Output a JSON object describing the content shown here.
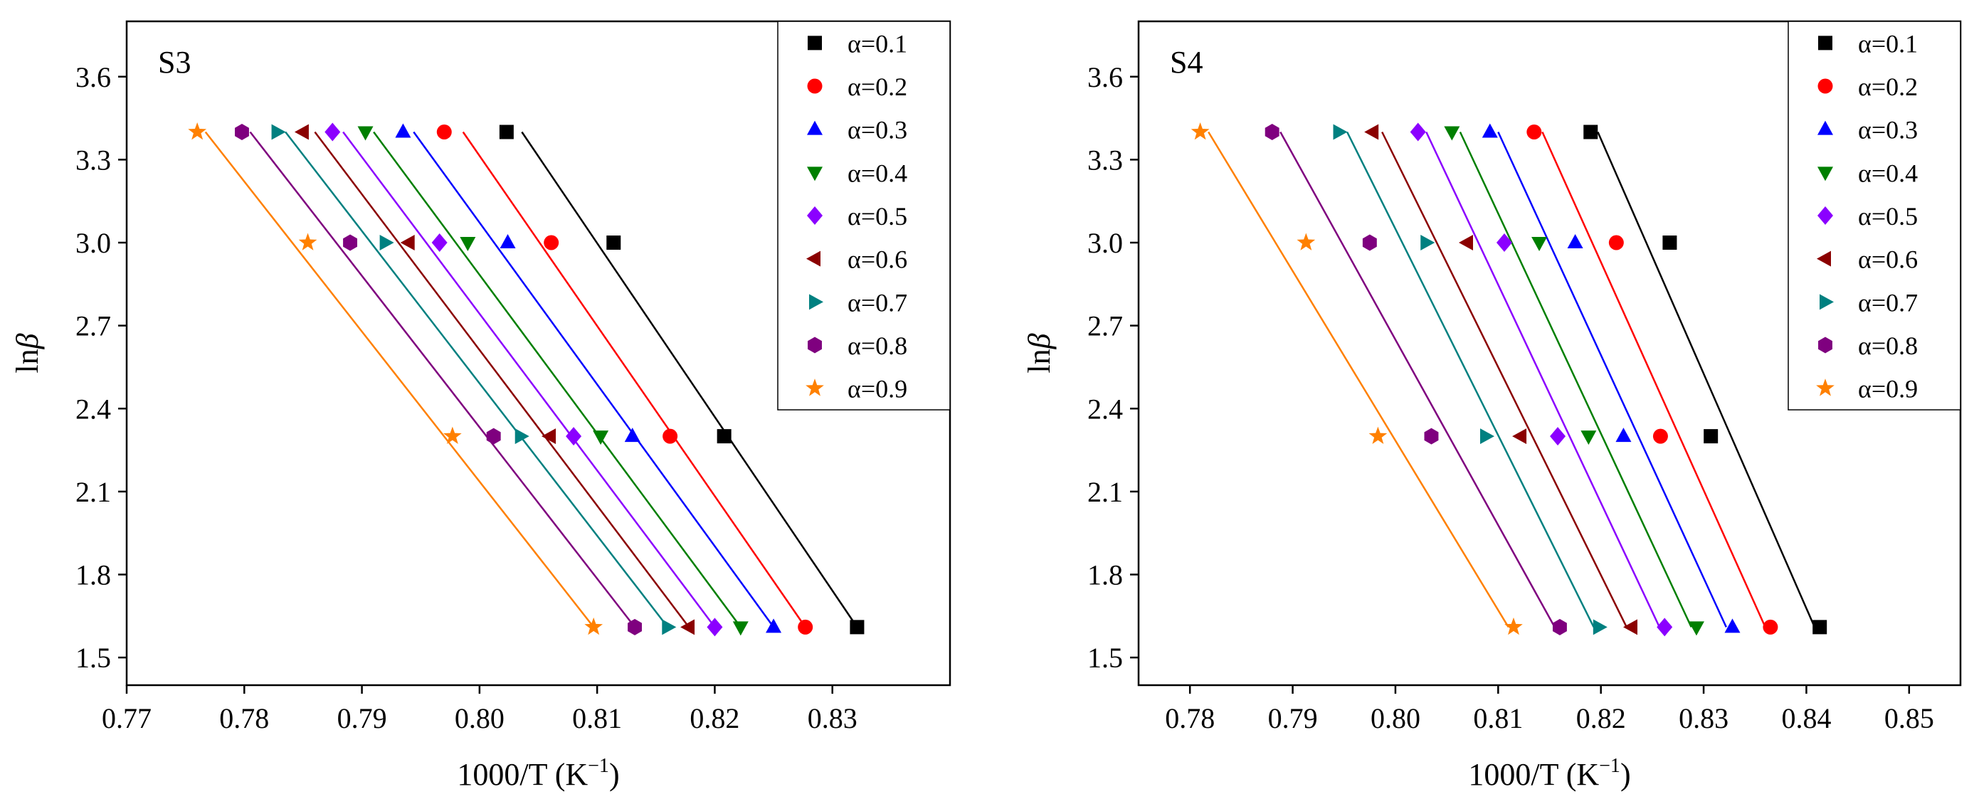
{
  "chart_data": [
    {
      "type": "scatter",
      "panel_label": "S3",
      "title": "",
      "xlabel": "1000/T (K⁻¹)",
      "xlabel_main": "1000/T (K",
      "xlabel_sup": "−1",
      "xlabel_end": ")",
      "ylabel": "lnβ",
      "ylabel_main": "ln",
      "ylabel_italic": "β",
      "xlim": [
        0.77,
        0.84
      ],
      "ylim": [
        1.4,
        3.8
      ],
      "xticks": [
        0.77,
        0.78,
        0.79,
        0.8,
        0.81,
        0.82,
        0.83
      ],
      "xtick_labels": [
        "0.77",
        "0.78",
        "0.79",
        "0.80",
        "0.81",
        "0.82",
        "0.83"
      ],
      "yticks": [
        1.5,
        1.8,
        2.1,
        2.4,
        2.7,
        3.0,
        3.3,
        3.6
      ],
      "ytick_labels": [
        "1.5",
        "1.8",
        "2.1",
        "2.4",
        "2.7",
        "3.0",
        "3.3",
        "3.6"
      ],
      "grid": false,
      "legend_position": "top-right",
      "series": [
        {
          "name": "α=0.1",
          "x": [
            0.8321,
            0.8208,
            0.8114,
            0.8023
          ],
          "y": [
            1.61,
            2.3,
            3.0,
            3.4
          ],
          "fit_x": [
            0.8321,
            0.8036
          ],
          "fit_y": [
            1.61,
            3.4
          ]
        },
        {
          "name": "α=0.2",
          "x": [
            0.8277,
            0.8162,
            0.8061,
            0.797
          ],
          "y": [
            1.61,
            2.3,
            3.0,
            3.4
          ],
          "fit_x": [
            0.8277,
            0.7986
          ],
          "fit_y": [
            1.61,
            3.4
          ]
        },
        {
          "name": "α=0.3",
          "x": [
            0.825,
            0.813,
            0.8024,
            0.7935
          ],
          "y": [
            1.61,
            2.3,
            3.0,
            3.4
          ],
          "fit_x": [
            0.825,
            0.7944
          ],
          "fit_y": [
            1.61,
            3.4
          ]
        },
        {
          "name": "α=0.4",
          "x": [
            0.8222,
            0.8103,
            0.799,
            0.7903
          ],
          "y": [
            1.61,
            2.3,
            3.0,
            3.4
          ],
          "fit_x": [
            0.8222,
            0.791
          ],
          "fit_y": [
            1.61,
            3.4
          ]
        },
        {
          "name": "α=0.5",
          "x": [
            0.82,
            0.808,
            0.7966,
            0.7875
          ],
          "y": [
            1.61,
            2.3,
            3.0,
            3.4
          ],
          "fit_x": [
            0.82,
            0.7884
          ],
          "fit_y": [
            1.61,
            3.4
          ]
        },
        {
          "name": "α=0.6",
          "x": [
            0.8178,
            0.806,
            0.794,
            0.785
          ],
          "y": [
            1.61,
            2.3,
            3.0,
            3.4
          ],
          "fit_x": [
            0.8178,
            0.786
          ],
          "fit_y": [
            1.61,
            3.4
          ]
        },
        {
          "name": "α=0.7",
          "x": [
            0.816,
            0.8035,
            0.792,
            0.7828
          ],
          "y": [
            1.61,
            2.3,
            3.0,
            3.4
          ],
          "fit_x": [
            0.816,
            0.7835
          ],
          "fit_y": [
            1.61,
            3.4
          ]
        },
        {
          "name": "α=0.8",
          "x": [
            0.8132,
            0.8012,
            0.789,
            0.7798
          ],
          "y": [
            1.61,
            2.3,
            3.0,
            3.4
          ],
          "fit_x": [
            0.8132,
            0.7805
          ],
          "fit_y": [
            1.61,
            3.4
          ]
        },
        {
          "name": "α=0.9",
          "x": [
            0.8097,
            0.7977,
            0.7854,
            0.776
          ],
          "y": [
            1.61,
            2.3,
            3.0,
            3.4
          ],
          "fit_x": [
            0.8097,
            0.7767
          ],
          "fit_y": [
            1.61,
            3.4
          ]
        }
      ]
    },
    {
      "type": "scatter",
      "panel_label": "S4",
      "title": "",
      "xlabel": "1000/T (K⁻¹)",
      "xlabel_main": "1000/T (K",
      "xlabel_sup": "−1",
      "xlabel_end": ")",
      "ylabel": "lnβ",
      "ylabel_main": "ln",
      "ylabel_italic": "β",
      "xlim": [
        0.775,
        0.855
      ],
      "ylim": [
        1.4,
        3.8
      ],
      "xticks": [
        0.78,
        0.79,
        0.8,
        0.81,
        0.82,
        0.83,
        0.84,
        0.85
      ],
      "xtick_labels": [
        "0.78",
        "0.79",
        "0.80",
        "0.81",
        "0.82",
        "0.83",
        "0.84",
        "0.85"
      ],
      "yticks": [
        1.5,
        1.8,
        2.1,
        2.4,
        2.7,
        3.0,
        3.3,
        3.6
      ],
      "ytick_labels": [
        "1.5",
        "1.8",
        "2.1",
        "2.4",
        "2.7",
        "3.0",
        "3.3",
        "3.6"
      ],
      "grid": false,
      "legend_position": "top-right",
      "series": [
        {
          "name": "α=0.1",
          "x": [
            0.8413,
            0.8307,
            0.8267,
            0.819
          ],
          "y": [
            1.61,
            2.3,
            3.0,
            3.4
          ],
          "fit_x": [
            0.8408,
            0.8197
          ],
          "fit_y": [
            1.61,
            3.4
          ]
        },
        {
          "name": "α=0.2",
          "x": [
            0.8365,
            0.8258,
            0.8215,
            0.8135
          ],
          "y": [
            1.61,
            2.3,
            3.0,
            3.4
          ],
          "fit_x": [
            0.836,
            0.8143
          ],
          "fit_y": [
            1.61,
            3.4
          ]
        },
        {
          "name": "α=0.3",
          "x": [
            0.8328,
            0.8222,
            0.8175,
            0.8092
          ],
          "y": [
            1.61,
            2.3,
            3.0,
            3.4
          ],
          "fit_x": [
            0.8322,
            0.81
          ],
          "fit_y": [
            1.61,
            3.4
          ]
        },
        {
          "name": "α=0.4",
          "x": [
            0.8293,
            0.8188,
            0.814,
            0.8055
          ],
          "y": [
            1.61,
            2.3,
            3.0,
            3.4
          ],
          "fit_x": [
            0.8288,
            0.8063
          ],
          "fit_y": [
            1.61,
            3.4
          ]
        },
        {
          "name": "α=0.5",
          "x": [
            0.8262,
            0.8158,
            0.8106,
            0.8022
          ],
          "y": [
            1.61,
            2.3,
            3.0,
            3.4
          ],
          "fit_x": [
            0.8257,
            0.803
          ],
          "fit_y": [
            1.61,
            3.4
          ]
        },
        {
          "name": "α=0.6",
          "x": [
            0.823,
            0.8122,
            0.807,
            0.7978
          ],
          "y": [
            1.61,
            2.3,
            3.0,
            3.4
          ],
          "fit_x": [
            0.8225,
            0.7987
          ],
          "fit_y": [
            1.61,
            3.4
          ]
        },
        {
          "name": "α=0.7",
          "x": [
            0.8198,
            0.8088,
            0.803,
            0.7945
          ],
          "y": [
            1.61,
            2.3,
            3.0,
            3.4
          ],
          "fit_x": [
            0.8193,
            0.7953
          ],
          "fit_y": [
            1.61,
            3.4
          ]
        },
        {
          "name": "α=0.8",
          "x": [
            0.816,
            0.8035,
            0.7975,
            0.788
          ],
          "y": [
            1.61,
            2.3,
            3.0,
            3.4
          ],
          "fit_x": [
            0.8155,
            0.7888
          ],
          "fit_y": [
            1.61,
            3.4
          ]
        },
        {
          "name": "α=0.9",
          "x": [
            0.8115,
            0.7983,
            0.7913,
            0.781
          ],
          "y": [
            1.61,
            2.3,
            3.0,
            3.4
          ],
          "fit_x": [
            0.811,
            0.7818
          ],
          "fit_y": [
            1.61,
            3.4
          ]
        }
      ]
    }
  ],
  "style": {
    "series_colors": [
      "#000000",
      "#ff0000",
      "#0000ff",
      "#007f00",
      "#8b00ff",
      "#8b0000",
      "#008080",
      "#7f007f",
      "#ff8000"
    ],
    "series_markers": [
      "square",
      "circle",
      "triangle-up",
      "triangle-down",
      "diamond",
      "triangle-left",
      "triangle-right",
      "hexagon",
      "star"
    ]
  }
}
